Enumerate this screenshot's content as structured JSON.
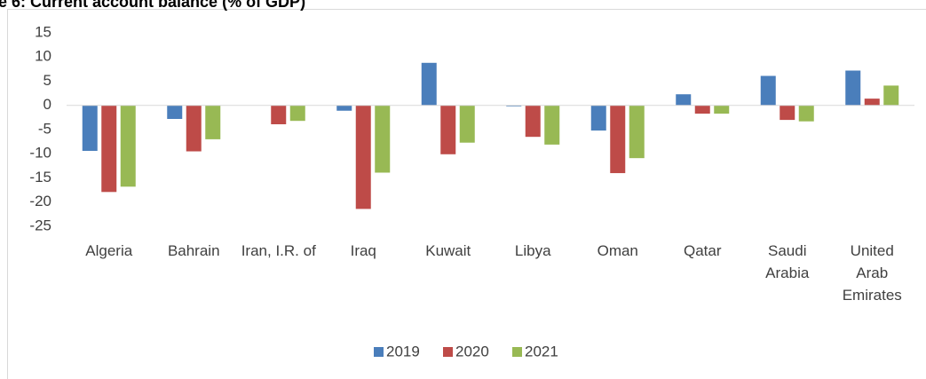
{
  "chart_data": {
    "type": "bar",
    "title": "e 6: Current account balance (% of GDP)",
    "categories": [
      "Algeria",
      "Bahrain",
      "Iran, I.R. of",
      "Iraq",
      "Kuwait",
      "Libya",
      "Oman",
      "Qatar",
      "Saudi Arabia",
      "United Arab Emirates"
    ],
    "series": [
      {
        "name": "2019",
        "color": "#4a7ebb",
        "values": [
          -9.4,
          -2.8,
          null,
          -1.1,
          8.8,
          -0.2,
          -5.2,
          2.3,
          6.1,
          7.2
        ]
      },
      {
        "name": "2020",
        "color": "#be4b48",
        "values": [
          -17.9,
          -9.5,
          -3.9,
          -21.4,
          -10.1,
          -6.5,
          -14.0,
          -1.7,
          -3.0,
          1.4
        ]
      },
      {
        "name": "2021",
        "color": "#98b954",
        "values": [
          -16.8,
          -7.0,
          -3.2,
          -13.9,
          -7.7,
          -8.1,
          -10.9,
          -1.7,
          -3.3,
          4.1
        ]
      }
    ],
    "ylim": [
      -25,
      15
    ],
    "yticks": [
      -25,
      -20,
      -15,
      -10,
      -5,
      0,
      5,
      10,
      15
    ],
    "grid": false,
    "legend": "bottom"
  }
}
